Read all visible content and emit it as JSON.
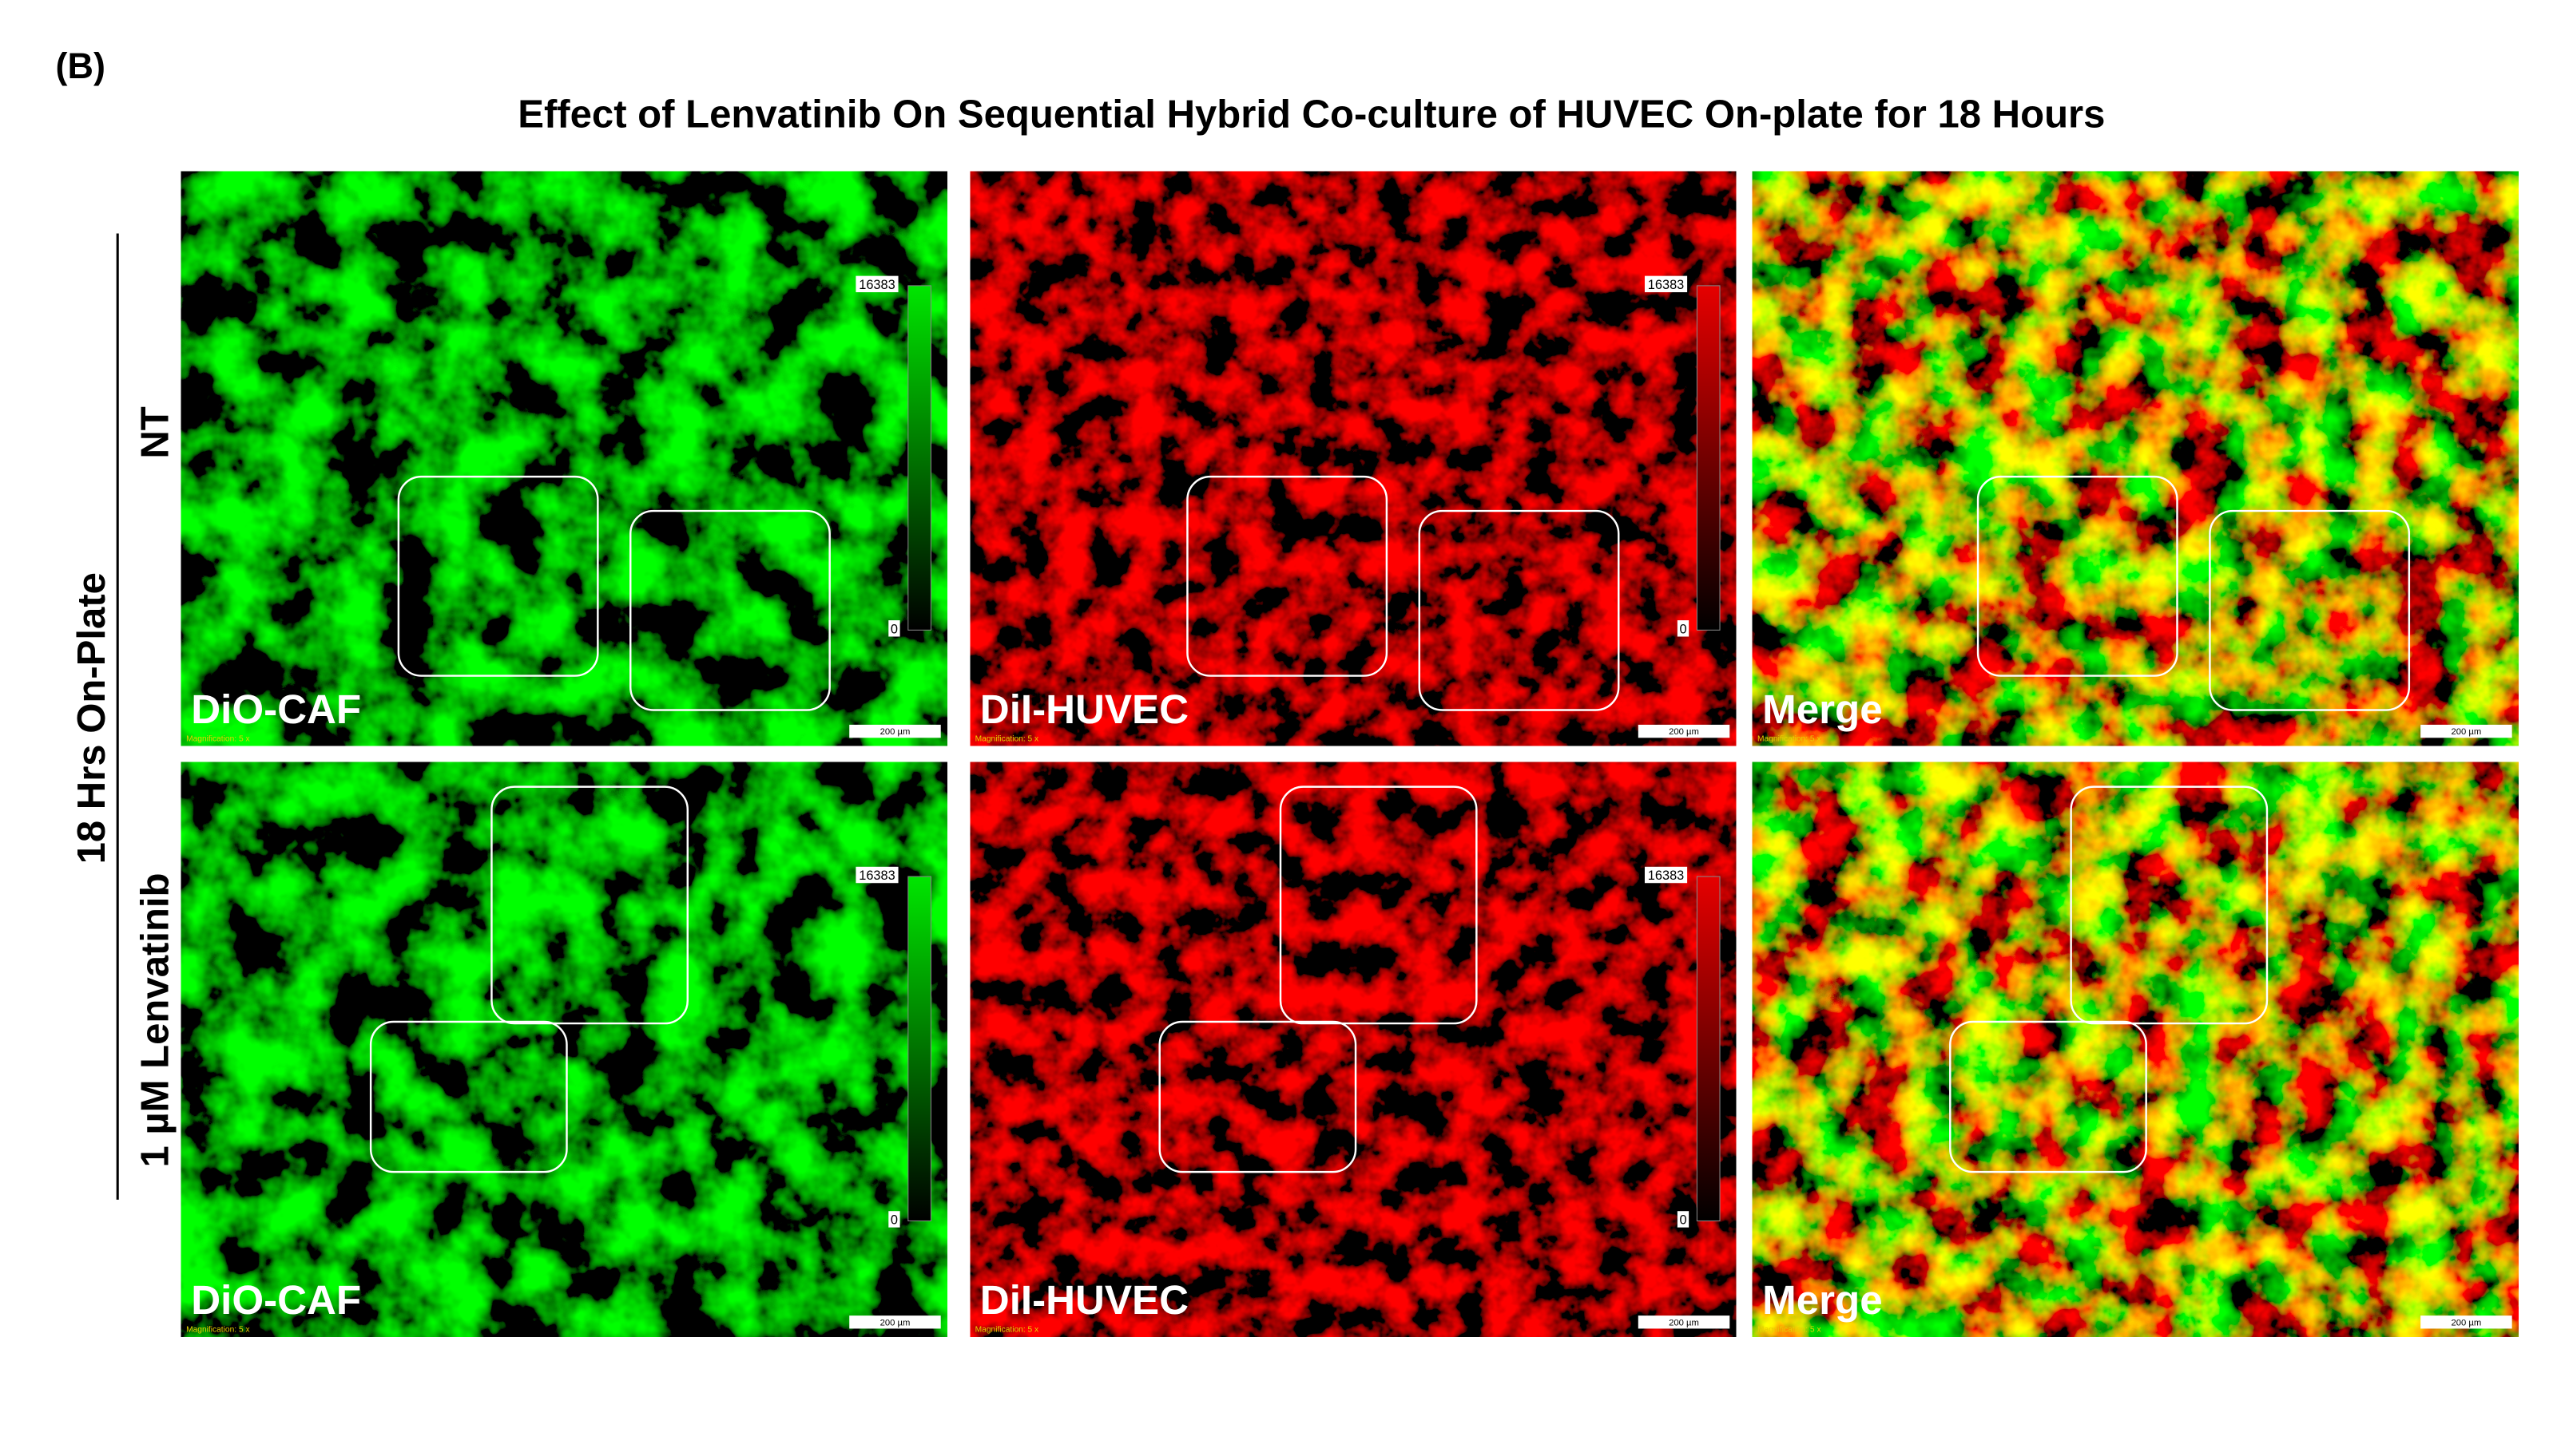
{
  "panel_label": "(B)",
  "title": "Effect of Lenvatinib On Sequential Hybrid Co-culture of HUVEC On-plate for 18 Hours",
  "group_label": "18 Hrs On-Plate",
  "rows": [
    {
      "label": "NT",
      "panels": [
        {
          "label": "DiO-CAF",
          "colorbar": {
            "max": "16383",
            "min": "0"
          },
          "scale_bar": "200 µm",
          "magnification": "Magnification: 5 x"
        },
        {
          "label": "DiI-HUVEC",
          "colorbar": {
            "max": "16383",
            "min": "0"
          },
          "scale_bar": "200 µm",
          "magnification": "Magnification: 5 x"
        },
        {
          "label": "Merge",
          "scale_bar": "200 µm",
          "magnification": "Magnification: 5 x"
        }
      ]
    },
    {
      "label": "1 µM Lenvatinib",
      "panels": [
        {
          "label": "DiO-CAF",
          "colorbar": {
            "max": "16383",
            "min": "0"
          },
          "scale_bar": "200 µm",
          "magnification": "Magnification: 5 x"
        },
        {
          "label": "DiI-HUVEC",
          "colorbar": {
            "max": "16383",
            "min": "0"
          },
          "scale_bar": "200 µm",
          "magnification": "Magnification: 5 x"
        },
        {
          "label": "Merge",
          "scale_bar": "200 µm",
          "magnification": "Magnification: 5 x"
        }
      ]
    }
  ]
}
